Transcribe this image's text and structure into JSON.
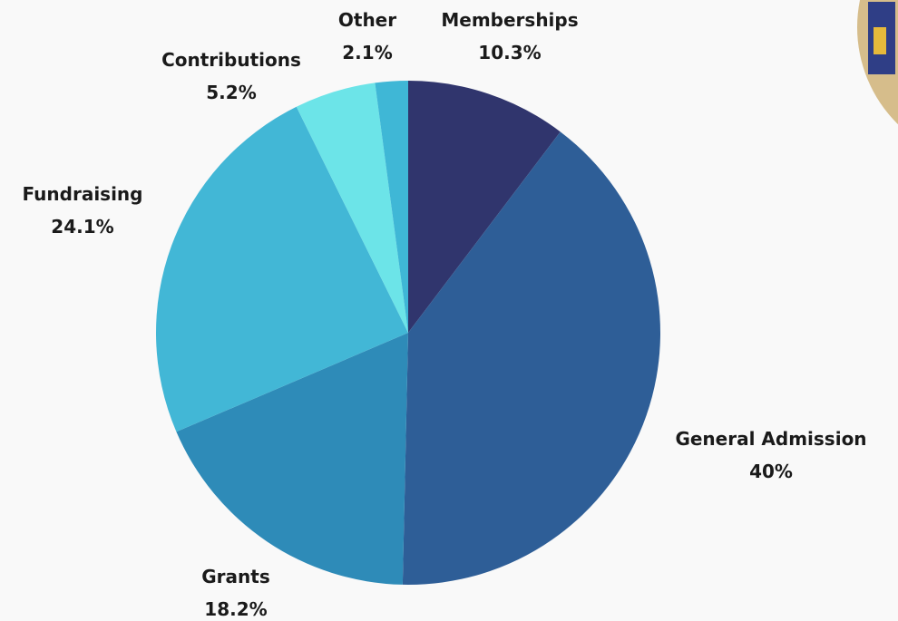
{
  "chart_data": {
    "type": "pie",
    "title": "",
    "slices": [
      {
        "label": "Memberships",
        "value": 10.3,
        "value_text": "10.3%",
        "color": "#30356d"
      },
      {
        "label": "General Admission",
        "value": 40,
        "value_text": "40%",
        "color": "#2e5e97"
      },
      {
        "label": "Grants",
        "value": 18.2,
        "value_text": "18.2%",
        "color": "#2e8bb8"
      },
      {
        "label": "Fundraising",
        "value": 24.1,
        "value_text": "24.1%",
        "color": "#42b7d6"
      },
      {
        "label": "Contributions",
        "value": 5.2,
        "value_text": "5.2%",
        "color": "#6ce4e8"
      },
      {
        "label": "Other",
        "value": 2.1,
        "value_text": "2.1%",
        "color": "#3fb7d6"
      }
    ],
    "start_angle": "12 o'clock",
    "direction": "clockwise",
    "legend": "none"
  },
  "decor": {
    "photo_icon": "photo-thumbnail"
  }
}
